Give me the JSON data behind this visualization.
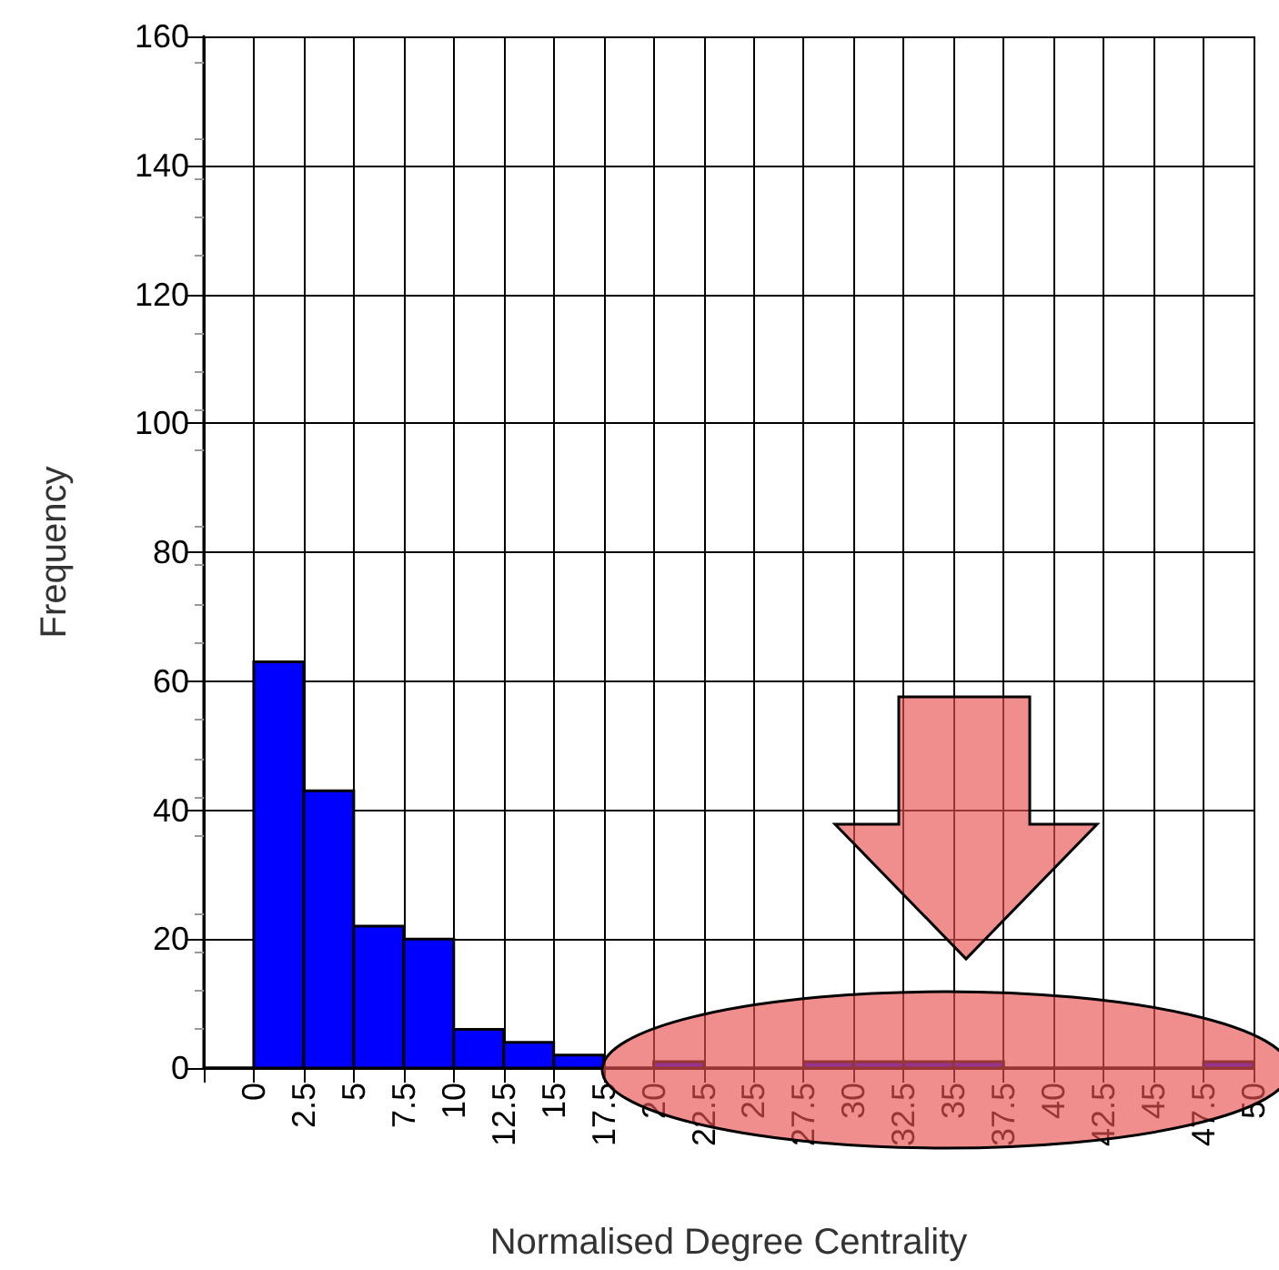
{
  "chart_data": {
    "type": "histogram",
    "xlabel": "Normalised Degree Centrality",
    "ylabel": "Frequency",
    "color": "#0000ff",
    "bins": [
      -2.5,
      0,
      2.5,
      5,
      7.5,
      10,
      12.5,
      15,
      17.5,
      20,
      22.5,
      25,
      27.5,
      30,
      32.5,
      35,
      37.5,
      40,
      42.5,
      45,
      47.5,
      50
    ],
    "values": [
      0,
      63,
      43,
      22,
      20,
      6,
      4,
      2,
      0,
      1,
      0,
      0,
      1,
      1,
      1,
      1,
      0,
      0,
      0,
      0,
      1
    ],
    "xlim": [
      -2.5,
      50
    ],
    "xticks": [
      {
        "value": -2.5,
        "label": null
      },
      0,
      2.5,
      5,
      7.5,
      10,
      12.5,
      15,
      17.5,
      20,
      22.5,
      25,
      27.5,
      30,
      32.5,
      35,
      37.5,
      40,
      42.5,
      45,
      47.5,
      50
    ],
    "ylim": [
      0,
      160
    ],
    "yticks": [
      0,
      20,
      40,
      60,
      80,
      100,
      120,
      140,
      160
    ],
    "grid": true
  }
}
